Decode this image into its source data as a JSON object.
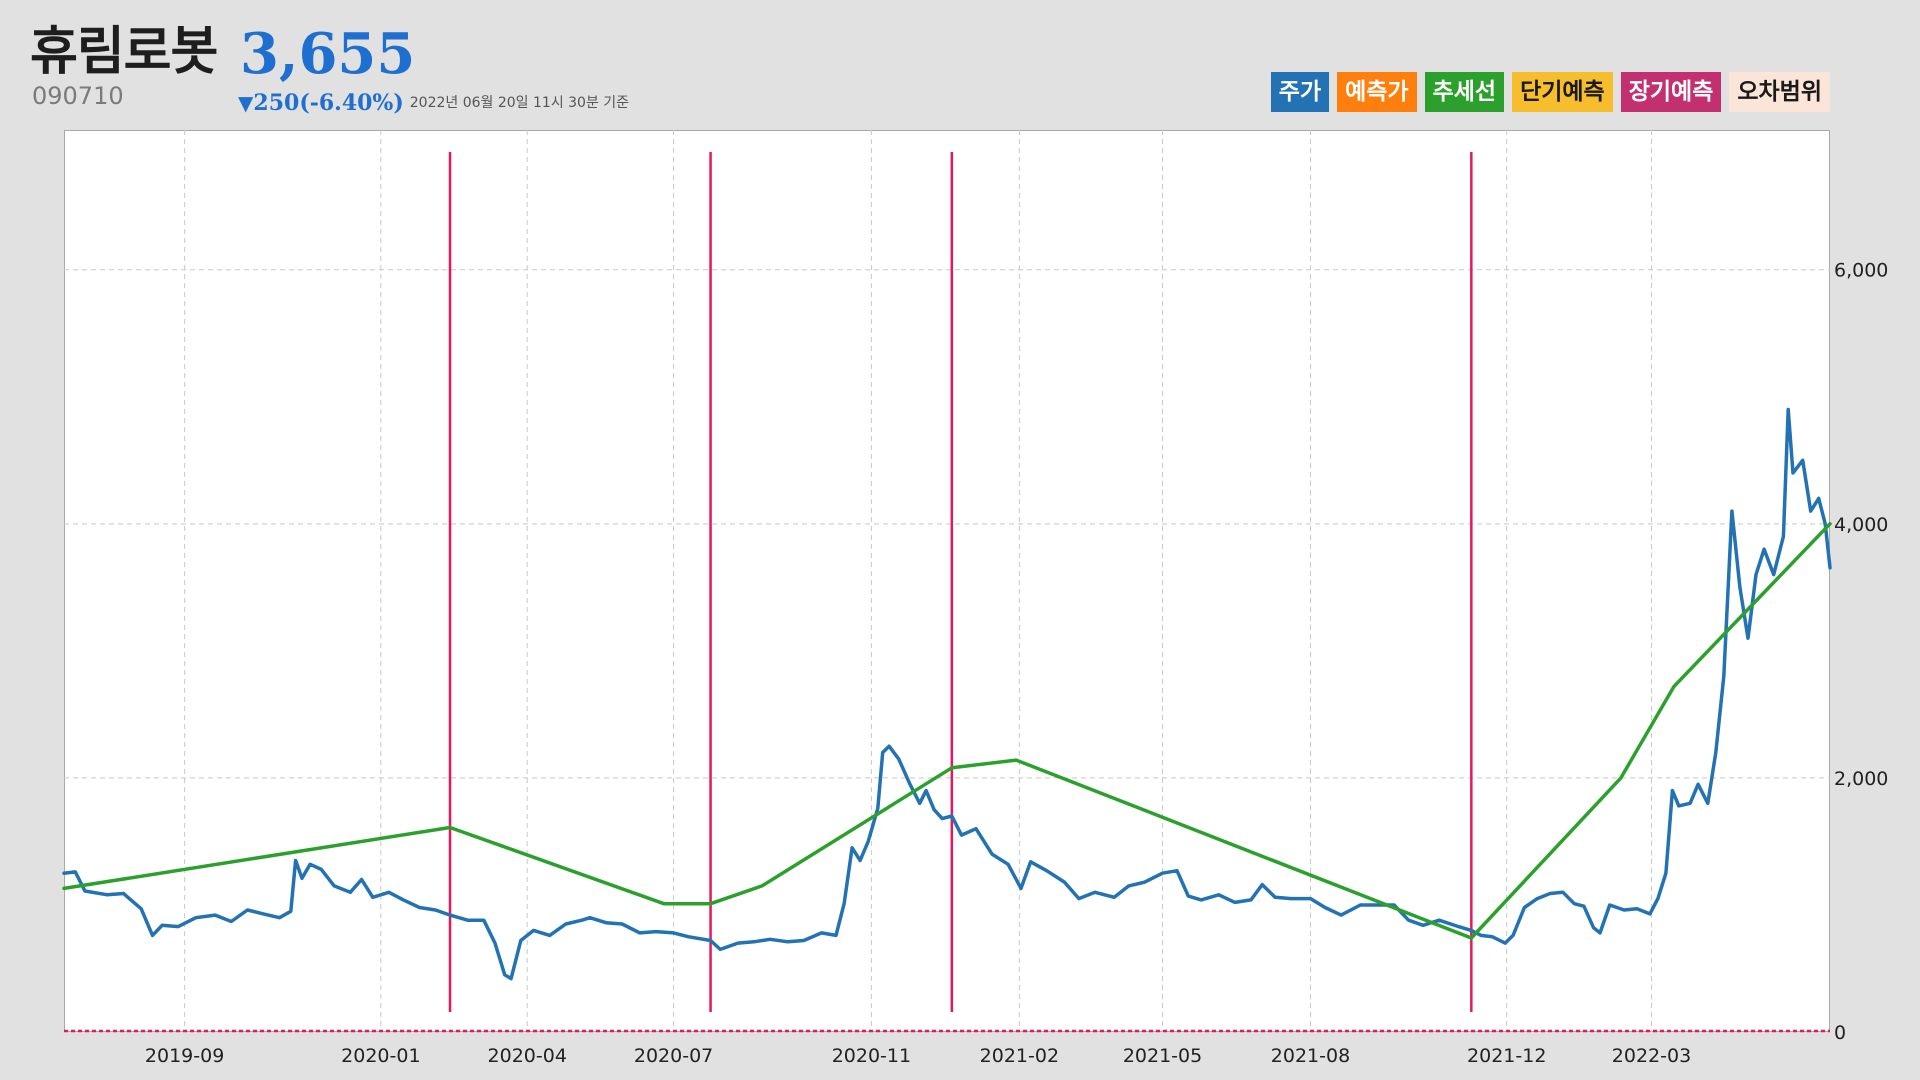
{
  "header": {
    "name": "휴림로봇",
    "price": "3,655",
    "code": "090710",
    "change_icon": "▼",
    "change": "250(-6.40%)",
    "as_of": "2022년 06월 20일 11시 30분 기준"
  },
  "legend": [
    {
      "label": "주가",
      "bg": "#2272b4",
      "fg": "#ffffff"
    },
    {
      "label": "예측가",
      "bg": "#ff7f0e",
      "fg": "#ffffff"
    },
    {
      "label": "추세선",
      "bg": "#2ca02c",
      "fg": "#ffffff"
    },
    {
      "label": "단기예측",
      "bg": "#f6be2c",
      "fg": "#1a1a1a"
    },
    {
      "label": "장기예측",
      "bg": "#c2306f",
      "fg": "#ffffff"
    },
    {
      "label": "오차범위",
      "bg": "#fbe4d8",
      "fg": "#1a1a1a"
    }
  ],
  "colors": {
    "price": "#2272b4",
    "trend": "#2ca02c",
    "event_line": "#e8175d",
    "zero_line": "#e8175d",
    "grid": "#c8c8c8"
  },
  "chart_data": {
    "type": "line",
    "x_range": [
      "2019-06-18",
      "2022-06-20"
    ],
    "ylim": [
      0,
      7100
    ],
    "y_ticks": [
      {
        "value": 0,
        "label": "0"
      },
      {
        "value": 2000,
        "label": "2,000"
      },
      {
        "value": 4000,
        "label": "4,000"
      },
      {
        "value": 6000,
        "label": "6,000"
      }
    ],
    "x_ticks": [
      "2019-09",
      "2020-01",
      "2020-04",
      "2020-07",
      "2020-11",
      "2021-02",
      "2021-05",
      "2021-08",
      "2021-12",
      "2022-03"
    ],
    "grid": true,
    "legend_position": "top-right",
    "event_lines": [
      "2020-02-13",
      "2020-07-24",
      "2020-12-21",
      "2021-11-09"
    ],
    "series": [
      {
        "name": "주가",
        "points": [
          [
            "2019-06-18",
            1250
          ],
          [
            "2019-06-25",
            1260
          ],
          [
            "2019-07-01",
            1110
          ],
          [
            "2019-07-15",
            1080
          ],
          [
            "2019-07-25",
            1090
          ],
          [
            "2019-08-05",
            970
          ],
          [
            "2019-08-12",
            760
          ],
          [
            "2019-08-18",
            840
          ],
          [
            "2019-08-28",
            830
          ],
          [
            "2019-09-08",
            900
          ],
          [
            "2019-09-20",
            920
          ],
          [
            "2019-09-30",
            870
          ],
          [
            "2019-10-10",
            960
          ],
          [
            "2019-10-20",
            930
          ],
          [
            "2019-10-30",
            900
          ],
          [
            "2019-11-06",
            950
          ],
          [
            "2019-11-09",
            1350
          ],
          [
            "2019-11-13",
            1210
          ],
          [
            "2019-11-18",
            1320
          ],
          [
            "2019-11-25",
            1280
          ],
          [
            "2019-12-03",
            1150
          ],
          [
            "2019-12-13",
            1100
          ],
          [
            "2019-12-20",
            1200
          ],
          [
            "2019-12-27",
            1060
          ],
          [
            "2020-01-06",
            1100
          ],
          [
            "2020-01-15",
            1040
          ],
          [
            "2020-01-25",
            980
          ],
          [
            "2020-02-04",
            960
          ],
          [
            "2020-02-13",
            920
          ],
          [
            "2020-02-24",
            880
          ],
          [
            "2020-03-05",
            880
          ],
          [
            "2020-03-12",
            700
          ],
          [
            "2020-03-18",
            450
          ],
          [
            "2020-03-22",
            420
          ],
          [
            "2020-03-28",
            720
          ],
          [
            "2020-04-05",
            800
          ],
          [
            "2020-04-15",
            760
          ],
          [
            "2020-04-25",
            850
          ],
          [
            "2020-05-05",
            880
          ],
          [
            "2020-05-10",
            900
          ],
          [
            "2020-05-20",
            860
          ],
          [
            "2020-05-30",
            850
          ],
          [
            "2020-06-10",
            780
          ],
          [
            "2020-06-20",
            790
          ],
          [
            "2020-07-01",
            780
          ],
          [
            "2020-07-10",
            750
          ],
          [
            "2020-07-24",
            720
          ],
          [
            "2020-07-30",
            650
          ],
          [
            "2020-08-10",
            700
          ],
          [
            "2020-08-20",
            710
          ],
          [
            "2020-08-30",
            730
          ],
          [
            "2020-09-10",
            710
          ],
          [
            "2020-09-20",
            720
          ],
          [
            "2020-10-01",
            780
          ],
          [
            "2020-10-10",
            760
          ],
          [
            "2020-10-15",
            1010
          ],
          [
            "2020-10-20",
            1450
          ],
          [
            "2020-10-25",
            1350
          ],
          [
            "2020-10-30",
            1500
          ],
          [
            "2020-11-05",
            1760
          ],
          [
            "2020-11-08",
            2200
          ],
          [
            "2020-11-12",
            2250
          ],
          [
            "2020-11-18",
            2150
          ],
          [
            "2020-11-25",
            1950
          ],
          [
            "2020-12-01",
            1800
          ],
          [
            "2020-12-05",
            1900
          ],
          [
            "2020-12-10",
            1750
          ],
          [
            "2020-12-15",
            1680
          ],
          [
            "2020-12-21",
            1700
          ],
          [
            "2020-12-27",
            1550
          ],
          [
            "2021-01-05",
            1600
          ],
          [
            "2021-01-15",
            1400
          ],
          [
            "2021-01-25",
            1320
          ],
          [
            "2021-02-02",
            1130
          ],
          [
            "2021-02-08",
            1340
          ],
          [
            "2021-02-18",
            1270
          ],
          [
            "2021-03-01",
            1180
          ],
          [
            "2021-03-10",
            1050
          ],
          [
            "2021-03-20",
            1100
          ],
          [
            "2021-04-01",
            1060
          ],
          [
            "2021-04-10",
            1150
          ],
          [
            "2021-04-20",
            1180
          ],
          [
            "2021-05-01",
            1250
          ],
          [
            "2021-05-10",
            1270
          ],
          [
            "2021-05-17",
            1070
          ],
          [
            "2021-05-25",
            1040
          ],
          [
            "2021-06-05",
            1080
          ],
          [
            "2021-06-15",
            1020
          ],
          [
            "2021-06-25",
            1040
          ],
          [
            "2021-07-02",
            1160
          ],
          [
            "2021-07-10",
            1060
          ],
          [
            "2021-07-20",
            1050
          ],
          [
            "2021-08-01",
            1050
          ],
          [
            "2021-08-10",
            980
          ],
          [
            "2021-08-20",
            920
          ],
          [
            "2021-09-01",
            1000
          ],
          [
            "2021-09-12",
            1000
          ],
          [
            "2021-09-22",
            1000
          ],
          [
            "2021-10-01",
            880
          ],
          [
            "2021-10-10",
            840
          ],
          [
            "2021-10-20",
            880
          ],
          [
            "2021-11-01",
            830
          ],
          [
            "2021-11-09",
            800
          ],
          [
            "2021-11-15",
            760
          ],
          [
            "2021-11-22",
            750
          ],
          [
            "2021-11-30",
            700
          ],
          [
            "2021-12-05",
            760
          ],
          [
            "2021-12-12",
            980
          ],
          [
            "2021-12-20",
            1050
          ],
          [
            "2021-12-28",
            1090
          ],
          [
            "2022-01-05",
            1100
          ],
          [
            "2022-01-12",
            1010
          ],
          [
            "2022-01-18",
            990
          ],
          [
            "2022-01-24",
            820
          ],
          [
            "2022-01-28",
            780
          ],
          [
            "2022-02-03",
            1000
          ],
          [
            "2022-02-12",
            960
          ],
          [
            "2022-02-20",
            970
          ],
          [
            "2022-02-28",
            930
          ],
          [
            "2022-03-05",
            1050
          ],
          [
            "2022-03-10",
            1250
          ],
          [
            "2022-03-14",
            1900
          ],
          [
            "2022-03-18",
            1780
          ],
          [
            "2022-03-25",
            1800
          ],
          [
            "2022-03-30",
            1950
          ],
          [
            "2022-04-05",
            1800
          ],
          [
            "2022-04-10",
            2200
          ],
          [
            "2022-04-15",
            2800
          ],
          [
            "2022-04-20",
            4100
          ],
          [
            "2022-04-25",
            3500
          ],
          [
            "2022-04-30",
            3100
          ],
          [
            "2022-05-05",
            3600
          ],
          [
            "2022-05-10",
            3800
          ],
          [
            "2022-05-16",
            3600
          ],
          [
            "2022-05-22",
            3900
          ],
          [
            "2022-05-25",
            4900
          ],
          [
            "2022-05-28",
            4400
          ],
          [
            "2022-06-03",
            4500
          ],
          [
            "2022-06-08",
            4100
          ],
          [
            "2022-06-13",
            4200
          ],
          [
            "2022-06-17",
            4000
          ],
          [
            "2022-06-20",
            3655
          ]
        ]
      },
      {
        "name": "추세선",
        "points": [
          [
            "2019-06-18",
            1130
          ],
          [
            "2020-02-13",
            1610
          ],
          [
            "2020-06-25",
            1010
          ],
          [
            "2020-07-24",
            1010
          ],
          [
            "2020-08-25",
            1150
          ],
          [
            "2020-12-21",
            2080
          ],
          [
            "2021-01-30",
            2140
          ],
          [
            "2021-11-09",
            740
          ],
          [
            "2022-02-10",
            2000
          ],
          [
            "2022-03-15",
            2720
          ],
          [
            "2022-06-20",
            4000
          ]
        ]
      }
    ]
  }
}
